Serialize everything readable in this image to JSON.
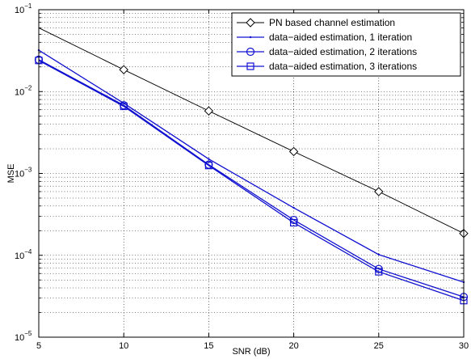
{
  "chart_data": {
    "type": "line",
    "xlabel": "SNR (dB)",
    "ylabel": "MSE",
    "xlim": [
      5,
      30
    ],
    "ylim": [
      1e-05,
      0.1
    ],
    "yscale": "log",
    "grid": true,
    "legend_position": "top-right",
    "x_ticks": [
      5,
      10,
      15,
      20,
      25,
      30
    ],
    "x_tick_labels": [
      "5",
      "10",
      "15",
      "20",
      "25",
      "30"
    ],
    "y_ticks": [
      1e-05,
      0.0001,
      0.001,
      0.01,
      0.1
    ],
    "y_tick_labels": [
      {
        "base": "10",
        "exp": "−5"
      },
      {
        "base": "10",
        "exp": "−4"
      },
      {
        "base": "10",
        "exp": "−3"
      },
      {
        "base": "10",
        "exp": "−2"
      },
      {
        "base": "10",
        "exp": "−1"
      }
    ],
    "series": [
      {
        "name": "PN based channel estimation",
        "color": "#000000",
        "marker": "diamond",
        "x": [
          5,
          10,
          15,
          20,
          25,
          30
        ],
        "y": [
          0.06,
          0.0185,
          0.0058,
          0.00185,
          0.0006,
          0.000185
        ],
        "marker_x": [
          10,
          15,
          20,
          25,
          30
        ],
        "marker_y": [
          0.0185,
          0.0058,
          0.00185,
          0.0006,
          0.000185
        ]
      },
      {
        "name": "data−aided estimation, 1 iteration",
        "color": "#1010d0",
        "marker": "dot",
        "x": [
          5,
          10,
          15,
          20,
          25,
          30
        ],
        "y": [
          0.032,
          0.0072,
          0.0015,
          0.00038,
          0.000102,
          4.7e-05
        ],
        "marker_x": [
          5,
          10,
          15,
          20,
          25,
          30
        ],
        "marker_y": [
          0.032,
          0.0072,
          0.0015,
          0.00038,
          0.000102,
          4.7e-05
        ]
      },
      {
        "name": "data−aided estimation, 2 iterations",
        "color": "#1010d0",
        "marker": "circle",
        "x": [
          5,
          10,
          15,
          20,
          25,
          30
        ],
        "y": [
          0.0245,
          0.0068,
          0.00128,
          0.00027,
          6.8e-05,
          3.1e-05
        ],
        "marker_x": [
          5,
          10,
          15,
          20,
          25,
          30
        ],
        "marker_y": [
          0.0245,
          0.0068,
          0.00128,
          0.00027,
          6.8e-05,
          3.1e-05
        ]
      },
      {
        "name": "data−aided estimation, 3 iterations",
        "color": "#1010d0",
        "marker": "square",
        "x": [
          5,
          10,
          15,
          20,
          25,
          30
        ],
        "y": [
          0.024,
          0.0066,
          0.00125,
          0.00025,
          6.3e-05,
          2.8e-05
        ],
        "marker_x": [
          5,
          10,
          15,
          20,
          25,
          30
        ],
        "marker_y": [
          0.024,
          0.0066,
          0.00125,
          0.00025,
          6.3e-05,
          2.8e-05
        ]
      }
    ]
  }
}
